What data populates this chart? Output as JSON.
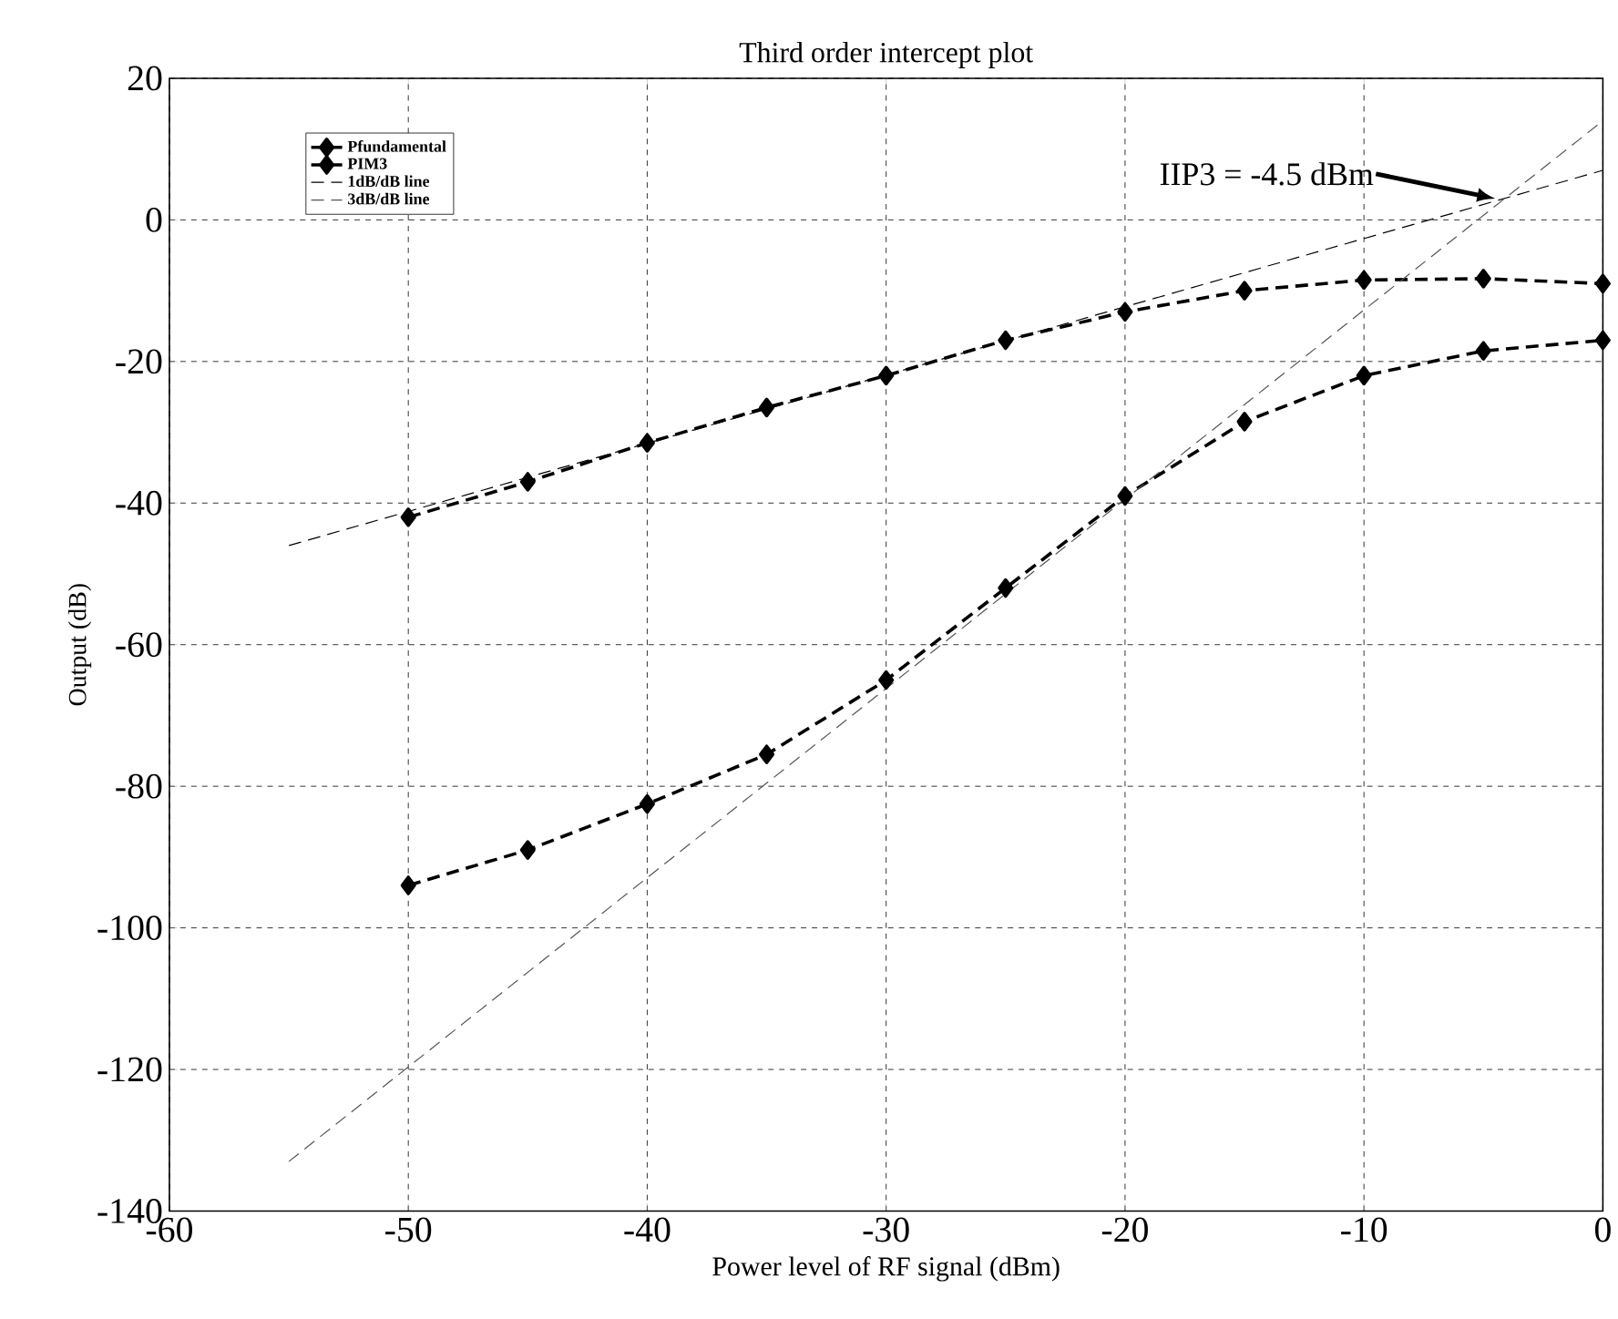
{
  "chart_data": {
    "type": "line",
    "title": "Third order intercept plot",
    "xlabel": "Power level of RF signal (dBm)",
    "ylabel": "Output (dB)",
    "x": [
      -55,
      -50,
      -45,
      -40,
      -35,
      -30,
      -25,
      -20,
      -15,
      -10,
      -5,
      0
    ],
    "series": [
      {
        "name": "Pfundamental",
        "color": "#000000",
        "marker": "diamond",
        "line_style": "dashed",
        "values": [
          null,
          -42,
          -37,
          -31.5,
          -26.5,
          -22,
          -17,
          -13,
          -10,
          -8.5,
          -8.3,
          -9
        ]
      },
      {
        "name": "PIM3",
        "color": "#000000",
        "marker": "diamond",
        "line_style": "dashed",
        "values": [
          null,
          -94,
          -89,
          -82.5,
          -75.5,
          -65,
          -52,
          -39,
          -28.5,
          -22,
          -18.5,
          -17
        ]
      },
      {
        "name": "1dB/dB line",
        "color": "#000000",
        "marker": "none",
        "line_style": "dashed",
        "values": [
          -46,
          null,
          null,
          null,
          null,
          null,
          null,
          null,
          null,
          null,
          null,
          7
        ]
      },
      {
        "name": "3dB/dB line",
        "color": "#555555",
        "marker": "none",
        "line_style": "dashed",
        "values": [
          -133,
          null,
          null,
          null,
          null,
          null,
          null,
          null,
          null,
          null,
          null,
          14
        ]
      }
    ],
    "xlim": [
      -60,
      0
    ],
    "xticks": [
      -60,
      -50,
      -40,
      -30,
      -20,
      -10,
      0
    ],
    "ylim": [
      -140,
      20
    ],
    "yticks": [
      -140,
      -120,
      -100,
      -80,
      -60,
      -40,
      -20,
      0,
      20
    ],
    "grid": true,
    "legend": "top left",
    "annotations": [
      {
        "text": "IIP3 = -4.5 dBm",
        "x": -4.5,
        "y": 3
      }
    ]
  }
}
